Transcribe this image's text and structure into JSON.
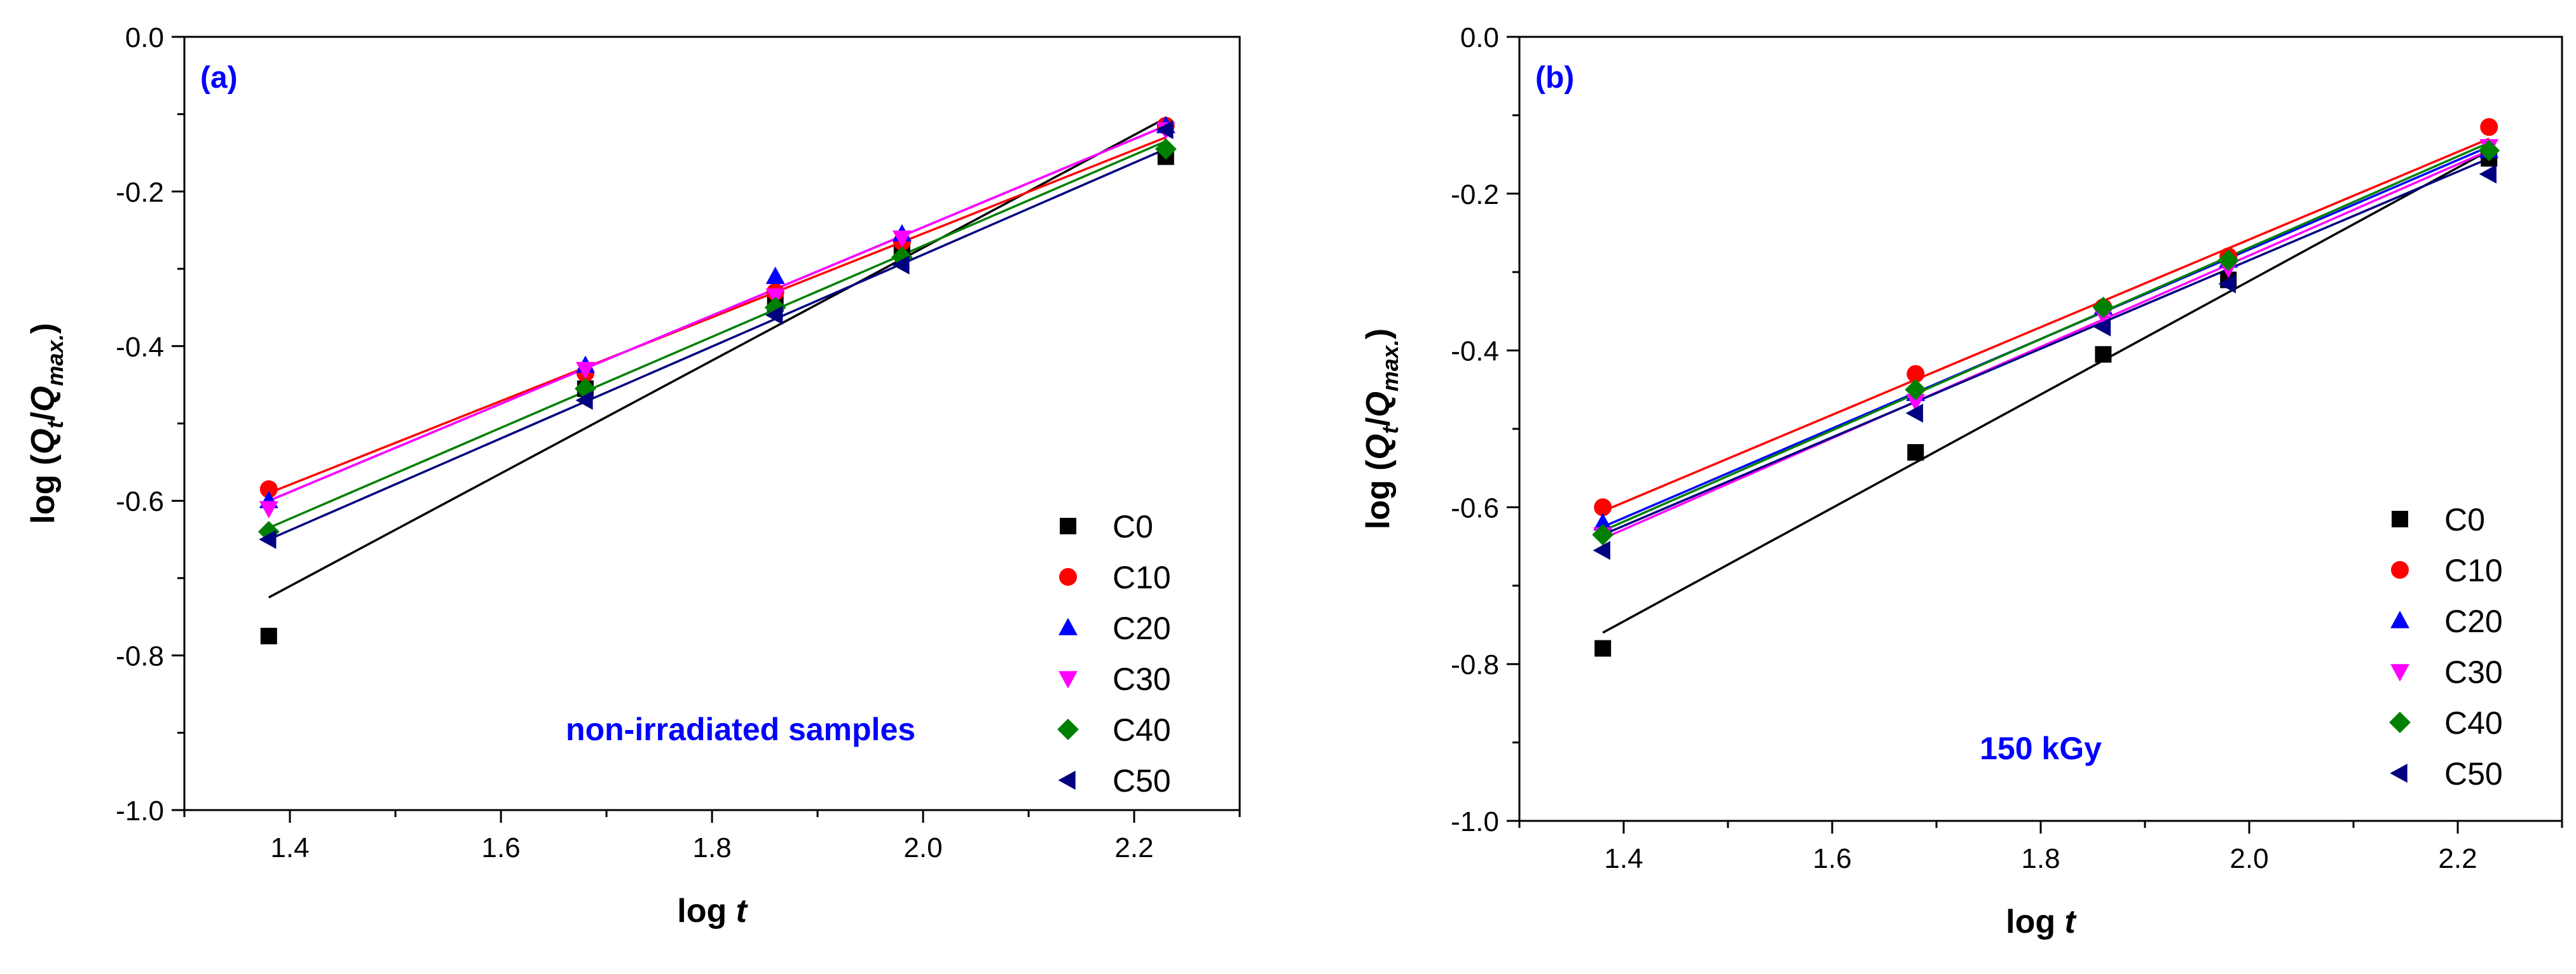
{
  "chart_data": [
    {
      "type": "scatter",
      "panel_label": "(a)",
      "annotation": "non-irradiated samples",
      "xlabel": "log t",
      "ylabel": "log (Q_t/Q_max.)",
      "xlim": [
        1.3,
        2.3
      ],
      "ylim": [
        -1.0,
        0.0
      ],
      "x_ticks": [
        "1.4",
        "1.6",
        "1.8",
        "2.0",
        "2.2"
      ],
      "y_ticks": [
        "0.0",
        "-0.2",
        "-0.4",
        "-0.6",
        "-0.8",
        "-1.0"
      ],
      "legend_position": "bottom-right",
      "x": [
        1.38,
        1.68,
        1.86,
        1.98,
        2.23
      ],
      "series": [
        {
          "name": "C0",
          "marker": "square",
          "color": "#000000",
          "values": [
            -0.775,
            -0.455,
            -0.345,
            -0.275,
            -0.155
          ],
          "fit": [
            -0.725,
            -0.105
          ]
        },
        {
          "name": "C10",
          "marker": "circle",
          "color": "#ff0000",
          "values": [
            -0.585,
            -0.435,
            -0.33,
            -0.265,
            -0.115
          ],
          "fit": [
            -0.59,
            -0.13
          ]
        },
        {
          "name": "C20",
          "marker": "triangle-up",
          "color": "#0000ff",
          "values": [
            -0.6,
            -0.425,
            -0.31,
            -0.255,
            -0.115
          ],
          "fit": [
            -0.6,
            -0.115
          ]
        },
        {
          "name": "C30",
          "marker": "triangle-down",
          "color": "#ff00ff",
          "values": [
            -0.61,
            -0.43,
            -0.335,
            -0.26,
            -0.12
          ],
          "fit": [
            -0.6,
            -0.115
          ]
        },
        {
          "name": "C40",
          "marker": "diamond",
          "color": "#008000",
          "values": [
            -0.64,
            -0.455,
            -0.35,
            -0.285,
            -0.145
          ],
          "fit": [
            -0.635,
            -0.135
          ]
        },
        {
          "name": "C50",
          "marker": "triangle-left",
          "color": "#000080",
          "values": [
            -0.65,
            -0.47,
            -0.36,
            -0.295,
            -0.12
          ],
          "fit": [
            -0.65,
            -0.145
          ]
        }
      ]
    },
    {
      "type": "scatter",
      "panel_label": "(b)",
      "annotation": "150 kGy",
      "xlabel": "log t",
      "ylabel": "log (Q_t/Q_max.)",
      "xlim": [
        1.3,
        2.3
      ],
      "ylim": [
        -1.0,
        0.0
      ],
      "x_ticks": [
        "1.4",
        "1.6",
        "1.8",
        "2.0",
        "2.2"
      ],
      "y_ticks": [
        "0.0",
        "-0.2",
        "-0.4",
        "-0.6",
        "-0.8",
        "-1.0"
      ],
      "legend_position": "bottom-right",
      "x": [
        1.38,
        1.68,
        1.86,
        1.98,
        2.23
      ],
      "series": [
        {
          "name": "C0",
          "marker": "square",
          "color": "#000000",
          "values": [
            -0.78,
            -0.53,
            -0.405,
            -0.31,
            -0.155
          ],
          "fit": [
            -0.76,
            -0.145
          ]
        },
        {
          "name": "C10",
          "marker": "circle",
          "color": "#ff0000",
          "values": [
            -0.6,
            -0.43,
            -0.345,
            -0.28,
            -0.115
          ],
          "fit": [
            -0.605,
            -0.13
          ]
        },
        {
          "name": "C20",
          "marker": "triangle-up",
          "color": "#0000ff",
          "values": [
            -0.62,
            -0.455,
            -0.345,
            -0.285,
            -0.145
          ],
          "fit": [
            -0.625,
            -0.14
          ]
        },
        {
          "name": "C30",
          "marker": "triangle-down",
          "color": "#ff00ff",
          "values": [
            -0.635,
            -0.465,
            -0.355,
            -0.295,
            -0.14
          ],
          "fit": [
            -0.64,
            -0.145
          ]
        },
        {
          "name": "C40",
          "marker": "diamond",
          "color": "#008000",
          "values": [
            -0.635,
            -0.45,
            -0.345,
            -0.285,
            -0.145
          ],
          "fit": [
            -0.63,
            -0.135
          ]
        },
        {
          "name": "C50",
          "marker": "triangle-left",
          "color": "#000080",
          "values": [
            -0.655,
            -0.48,
            -0.37,
            -0.315,
            -0.175
          ],
          "fit": [
            -0.635,
            -0.155
          ]
        }
      ]
    }
  ]
}
